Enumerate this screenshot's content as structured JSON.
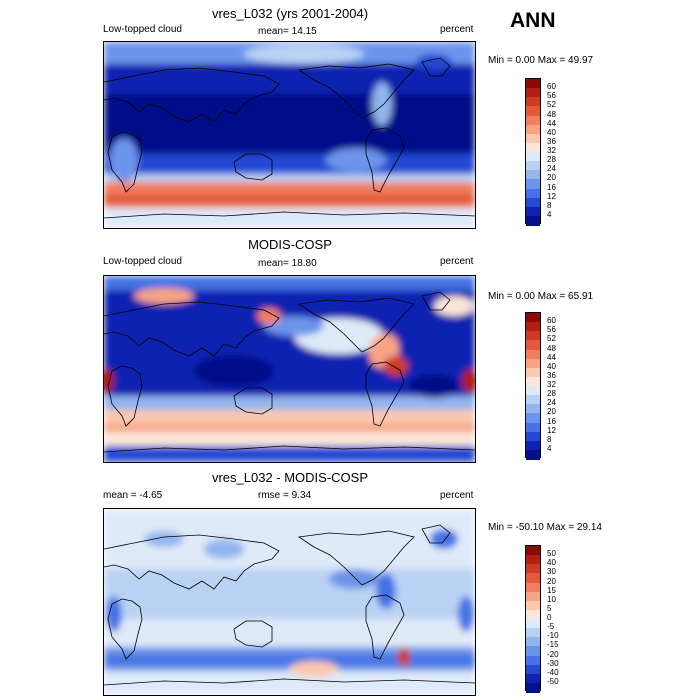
{
  "header": {
    "season": "ANN"
  },
  "panels": [
    {
      "id": "model",
      "title": "vres_L032 (yrs 2001-2004)",
      "left_label": "Low-topped cloud",
      "center_label": "mean=  14.15",
      "right_label": "percent",
      "minmax": "Min =   0.00 Max =  49.97",
      "colorbar_ticks": [
        "60",
        "56",
        "52",
        "48",
        "44",
        "40",
        "36",
        "32",
        "28",
        "24",
        "20",
        "16",
        "12",
        "8",
        "4"
      ],
      "colors": [
        "#8a0a06",
        "#b01f12",
        "#cd3a22",
        "#e35a3a",
        "#f07f60",
        "#f7a384",
        "#fbc8b0",
        "#fae6da",
        "#dfeaf8",
        "#b9d2f4",
        "#92b5ee",
        "#6c94ea",
        "#4572e4",
        "#2449d3",
        "#0e23b0",
        "#040f88"
      ]
    },
    {
      "id": "obs",
      "title": "MODIS-COSP",
      "left_label": "Low-topped cloud",
      "center_label": "mean=  18.80",
      "right_label": "percent",
      "minmax": "Min =   0.00 Max =  65.91",
      "colorbar_ticks": [
        "60",
        "56",
        "52",
        "48",
        "44",
        "40",
        "36",
        "32",
        "28",
        "24",
        "20",
        "16",
        "12",
        "8",
        "4"
      ],
      "colors": [
        "#8a0a06",
        "#b01f12",
        "#cd3a22",
        "#e35a3a",
        "#f07f60",
        "#f7a384",
        "#fbc8b0",
        "#fae6da",
        "#dfeaf8",
        "#b9d2f4",
        "#92b5ee",
        "#6c94ea",
        "#4572e4",
        "#2449d3",
        "#0e23b0",
        "#040f88"
      ]
    },
    {
      "id": "diff",
      "title": "vres_L032 - MODIS-COSP",
      "left_label": "mean =  -4.65",
      "center_label": "rmse =   9.34",
      "right_label": "percent",
      "minmax": "Min = -50.10 Max =  29.14",
      "colorbar_ticks": [
        "50",
        "40",
        "30",
        "20",
        "15",
        "10",
        "5",
        "0",
        "-5",
        "-10",
        "-15",
        "-20",
        "-30",
        "-40",
        "-50"
      ],
      "colors": [
        "#8a0a06",
        "#b01f12",
        "#cd3a22",
        "#e35a3a",
        "#f07f60",
        "#f7a384",
        "#fbc8b0",
        "#fae6da",
        "#dfeaf8",
        "#b9d2f4",
        "#92b5ee",
        "#6c94ea",
        "#4572e4",
        "#2449d3",
        "#0e23b0",
        "#040f88"
      ]
    }
  ]
}
